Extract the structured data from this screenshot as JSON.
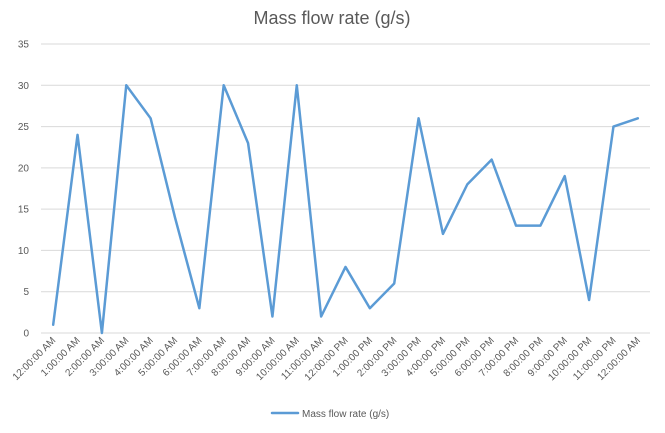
{
  "chart_data": {
    "type": "line",
    "title": "Mass flow rate (g/s)",
    "xlabel": "",
    "ylabel": "",
    "ylim": [
      0,
      35
    ],
    "yticks": [
      0,
      5,
      10,
      15,
      20,
      25,
      30,
      35
    ],
    "grid": true,
    "legend_position": "bottom",
    "categories": [
      "12:00:00 AM",
      "1:00:00 AM",
      "2:00:00 AM",
      "3:00:00 AM",
      "4:00:00 AM",
      "5:00:00 AM",
      "6:00:00 AM",
      "7:00:00 AM",
      "8:00:00 AM",
      "9:00:00 AM",
      "10:00:00 AM",
      "11:00:00 AM",
      "12:00:00 PM",
      "1:00:00 PM",
      "2:00:00 PM",
      "3:00:00 PM",
      "4:00:00 PM",
      "5:00:00 PM",
      "6:00:00 PM",
      "7:00:00 PM",
      "8:00:00 PM",
      "9:00:00 PM",
      "10:00:00 PM",
      "11:00:00 PM",
      "12:00:00 AM"
    ],
    "series": [
      {
        "name": "Mass flow rate (g/s)",
        "color": "#5b9bd5",
        "values": [
          1,
          24,
          0,
          30,
          26,
          14,
          3,
          30,
          23,
          2,
          30,
          2,
          8,
          3,
          6,
          26,
          12,
          18,
          21,
          13,
          13,
          19,
          4,
          25,
          26
        ]
      }
    ]
  }
}
